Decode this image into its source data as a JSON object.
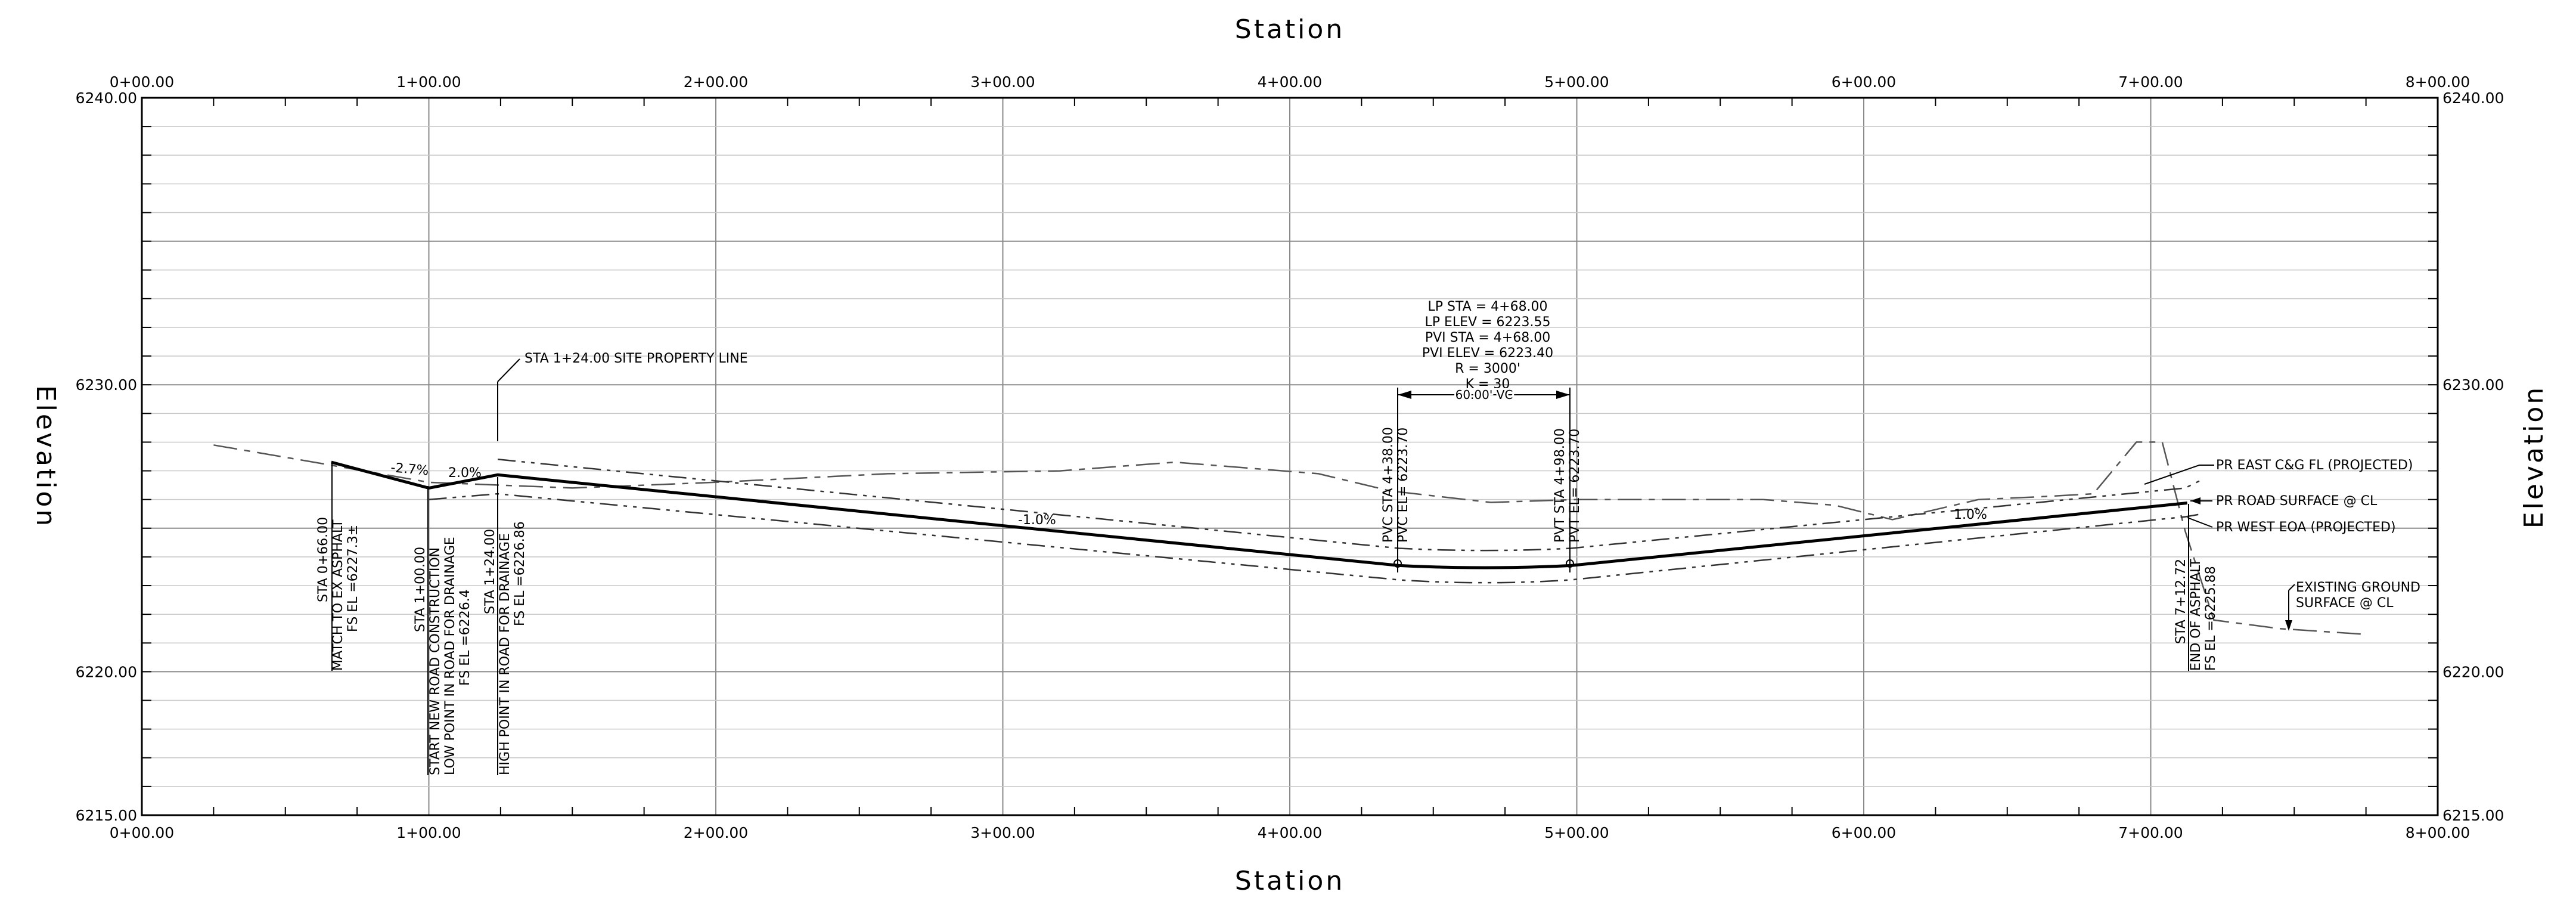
{
  "axes": {
    "x_title_top": "Station",
    "x_title_bottom": "Station",
    "y_title_left": "Elevation",
    "y_title_right": "Elevation",
    "x_ticks": [
      {
        "v": 0,
        "label": "0+00.00"
      },
      {
        "v": 100,
        "label": "1+00.00"
      },
      {
        "v": 200,
        "label": "2+00.00"
      },
      {
        "v": 300,
        "label": "3+00.00"
      },
      {
        "v": 400,
        "label": "4+00.00"
      },
      {
        "v": 500,
        "label": "5+00.00"
      },
      {
        "v": 600,
        "label": "6+00.00"
      },
      {
        "v": 700,
        "label": "7+00.00"
      },
      {
        "v": 800,
        "label": "8+00.00"
      }
    ],
    "y_ticks": [
      {
        "v": 6240,
        "label": "6240.00"
      },
      {
        "v": 6230,
        "label": "6230.00"
      },
      {
        "v": 6220,
        "label": "6220.00"
      },
      {
        "v": 6215,
        "label": "6215.00"
      }
    ],
    "x_range": [
      0,
      800
    ],
    "y_range": [
      6215,
      6240
    ]
  },
  "profiles": {
    "road_surface": [
      [
        66,
        6227.3
      ],
      [
        100,
        6226.4
      ],
      [
        124,
        6226.86
      ],
      [
        438,
        6223.7
      ],
      [
        468,
        6223.55
      ],
      [
        498,
        6223.7
      ],
      [
        712.72,
        6225.88
      ]
    ],
    "east_fl": [
      [
        124,
        6227.4
      ],
      [
        438,
        6224.3
      ],
      [
        468,
        6224.15
      ],
      [
        498,
        6224.3
      ],
      [
        712,
        6226.4
      ],
      [
        718,
        6226.7
      ]
    ],
    "west_eoa": [
      [
        100,
        6226.0
      ],
      [
        124,
        6226.2
      ],
      [
        438,
        6223.2
      ],
      [
        468,
        6223.0
      ],
      [
        498,
        6223.2
      ],
      [
        712,
        6225.4
      ],
      [
        718,
        6225.5
      ]
    ],
    "existing_ground": [
      [
        25,
        6227.9
      ],
      [
        60,
        6227.3
      ],
      [
        100,
        6226.6
      ],
      [
        150,
        6226.4
      ],
      [
        200,
        6226.6
      ],
      [
        260,
        6226.9
      ],
      [
        320,
        6227.0
      ],
      [
        360,
        6227.3
      ],
      [
        410,
        6226.9
      ],
      [
        435,
        6226.3
      ],
      [
        470,
        6225.9
      ],
      [
        500,
        6226.0
      ],
      [
        565,
        6226.0
      ],
      [
        590,
        6225.8
      ],
      [
        610,
        6225.3
      ],
      [
        640,
        6226.0
      ],
      [
        662,
        6226.1
      ],
      [
        680,
        6226.2
      ],
      [
        695,
        6228.0
      ],
      [
        704,
        6228.0
      ],
      [
        712,
        6224.9
      ],
      [
        722,
        6221.8
      ],
      [
        745,
        6221.5
      ],
      [
        775,
        6221.3
      ]
    ]
  },
  "grades": [
    "-2.7%",
    "2.0%",
    "-1.0%",
    "1.0%"
  ],
  "curve_data": {
    "lines": [
      "LP STA = 4+68.00",
      "LP ELEV = 6223.55",
      "PVI STA = 4+68.00",
      "PVI ELEV = 6223.40",
      "R = 3000'",
      "K = 30"
    ],
    "vc_length": "60.00' VC",
    "pvc": [
      "PVC STA 4+38.00",
      "PVC EL= 6223.70"
    ],
    "pvt": [
      "PVT STA 4+98.00",
      "PVT EL= 6223.70"
    ]
  },
  "callouts": {
    "property_line": "STA 1+24.00 SITE PROPERTY LINE",
    "east_fl": "PR EAST C&G FL (PROJECTED)",
    "road_surface": "PR ROAD SURFACE @ CL",
    "west_eoa": "PR WEST EOA (PROJECTED)",
    "existing_ground": [
      "EXISTING GROUND",
      "SURFACE @ CL"
    ]
  },
  "station_notes": {
    "sta_066": [
      "STA 0+66.00",
      "MATCH TO EX ASPHALT",
      "FS EL =6227.3±"
    ],
    "sta_100": [
      "STA 1+00.00",
      "START NEW ROAD CONSTRUCTION",
      "LOW POINT IN ROAD FOR DRAINAGE",
      "FS EL =6226.4"
    ],
    "sta_124": [
      "STA 1+24.00",
      "HIGH POINT IN ROAD FOR DRAINAGE",
      "FS EL =6226.86"
    ],
    "sta_712": [
      "STA 7+12.72",
      "END OF ASPHALT",
      "FS EL =6225.88"
    ]
  }
}
